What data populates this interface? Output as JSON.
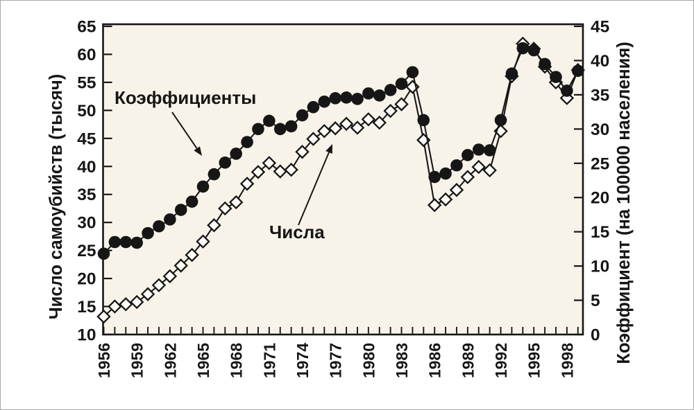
{
  "figure": {
    "background": "#ffffff",
    "border_color": "#a8a8a8",
    "plot_background": "#f7f3e9",
    "ink_color": "#161616",
    "marker_fill_open": "#fdfcf7"
  },
  "chart_data": {
    "type": "line",
    "title": "",
    "grid": "off",
    "years": [
      1956,
      1957,
      1958,
      1959,
      1960,
      1961,
      1962,
      1963,
      1964,
      1965,
      1966,
      1967,
      1968,
      1969,
      1970,
      1971,
      1972,
      1973,
      1974,
      1975,
      1976,
      1977,
      1978,
      1979,
      1980,
      1981,
      1982,
      1983,
      1984,
      1985,
      1986,
      1987,
      1988,
      1989,
      1990,
      1991,
      1992,
      1993,
      1994,
      1995,
      1996,
      1997,
      1998,
      1999
    ],
    "x_tick_labels": [
      "1956",
      "1959",
      "1962",
      "1965",
      "1968",
      "1971",
      "1974",
      "1977",
      "1980",
      "1983",
      "1986",
      "1989",
      "1992",
      "1995",
      "1998"
    ],
    "left_axis": {
      "title": "Число самоубийств (тысяч)",
      "min": 10,
      "max": 65,
      "tick_step": 5,
      "tick_labels": [
        "10",
        "15",
        "20",
        "25",
        "30",
        "35",
        "40",
        "45",
        "50",
        "55",
        "60",
        "65"
      ]
    },
    "right_axis": {
      "title": "Коэффициент (на 100000 населения)",
      "min": 0,
      "max": 45,
      "tick_step": 5,
      "tick_labels": [
        "0",
        "5",
        "10",
        "15",
        "20",
        "25",
        "30",
        "35",
        "40",
        "45"
      ]
    },
    "series": [
      {
        "name": "Числа",
        "axis": "left",
        "marker": "open-diamond",
        "unit": "тысяч",
        "values": [
          13.2,
          15.0,
          15.4,
          15.8,
          17.2,
          18.8,
          20.4,
          22.3,
          24.2,
          26.6,
          29.5,
          32.5,
          33.6,
          36.9,
          39.0,
          40.6,
          39.1,
          39.4,
          42.6,
          44.9,
          46.3,
          46.8,
          47.6,
          46.9,
          48.4,
          47.8,
          49.9,
          51.1,
          54.2,
          44.7,
          33.1,
          34.1,
          35.8,
          38.1,
          39.9,
          39.3,
          46.3,
          56.1,
          61.9,
          61.0,
          57.8,
          55.0,
          52.2,
          57.2
        ]
      },
      {
        "name": "Коэффициенты",
        "axis": "right",
        "marker": "filled-circle",
        "unit": "на 100000 населения",
        "values": [
          11.8,
          13.5,
          13.5,
          13.4,
          14.8,
          15.8,
          16.8,
          18.2,
          19.4,
          21.6,
          23.4,
          25.1,
          26.4,
          28.1,
          30.0,
          31.2,
          30.0,
          30.4,
          32.0,
          33.2,
          34.0,
          34.5,
          34.6,
          34.4,
          35.2,
          34.9,
          35.7,
          36.6,
          38.3,
          31.3,
          23.0,
          23.5,
          24.7,
          26.2,
          27.0,
          26.9,
          31.3,
          38.1,
          41.8,
          41.5,
          39.5,
          37.6,
          35.6,
          38.5
        ]
      }
    ],
    "annotations": [
      {
        "label": "Коэффициенты",
        "target_series": "Коэффициенты"
      },
      {
        "label": "Числа",
        "target_series": "Числа"
      }
    ]
  }
}
